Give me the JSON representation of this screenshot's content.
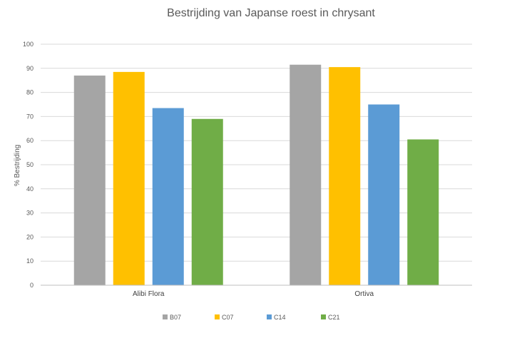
{
  "chart_data": {
    "type": "bar",
    "title": "Bestrijding van Japanse roest in chrysant",
    "xlabel": "",
    "ylabel": "% Bestrijding",
    "ylim": [
      0,
      100
    ],
    "yticks": [
      0,
      10,
      20,
      30,
      40,
      50,
      60,
      70,
      80,
      90,
      100
    ],
    "grid": true,
    "legend_position": "bottom",
    "categories": [
      "Alibi Flora",
      "Ortiva"
    ],
    "series": [
      {
        "name": "B07",
        "color": "#a5a5a5",
        "values": [
          87,
          91.5
        ]
      },
      {
        "name": "C07",
        "color": "#ffc000",
        "values": [
          88.5,
          90.5
        ]
      },
      {
        "name": "C14",
        "color": "#5b9bd5",
        "values": [
          73.5,
          75
        ]
      },
      {
        "name": "C21",
        "color": "#70ad47",
        "values": [
          69,
          60.5
        ]
      }
    ]
  }
}
